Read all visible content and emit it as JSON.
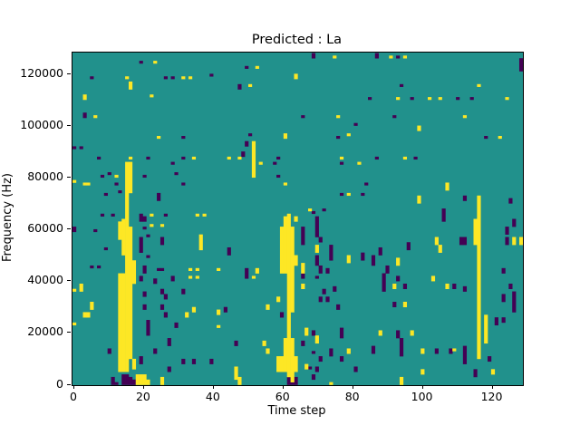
{
  "figure": {
    "background": "#ffffff"
  },
  "chart_data": {
    "type": "heatmap",
    "title": "Predicted : La",
    "xlabel": "Time step",
    "ylabel": "Frequency (Hz)",
    "x_ticks": [
      0,
      20,
      40,
      60,
      80,
      100,
      120
    ],
    "y_ticks": [
      0,
      20000,
      40000,
      60000,
      80000,
      100000,
      120000
    ],
    "xlim": [
      0,
      128
    ],
    "ylim": [
      0,
      128000
    ],
    "grid": {
      "cols": 128,
      "rows": 128
    },
    "legend": "none",
    "colors": {
      "mid_teal": "#21918c",
      "max_yellow": "#fde725",
      "min_dark": "#440154",
      "axes": "#000000",
      "figure_bg": "#ffffff"
    },
    "cells": {
      "encoding": "[col, rowStart, rowEnd], row 0 = bottom (0 Hz), 1 row = 1000 Hz",
      "max_runs": [
        [
          23,
          124,
          124
        ],
        [
          15,
          118,
          118
        ],
        [
          31,
          118,
          118
        ],
        [
          33,
          118,
          118
        ],
        [
          16,
          114,
          116
        ],
        [
          3,
          110,
          111
        ],
        [
          22,
          111,
          111
        ],
        [
          6,
          103,
          103
        ],
        [
          24,
          95,
          95
        ],
        [
          16,
          87,
          87
        ],
        [
          34,
          87,
          87
        ],
        [
          74,
          126,
          126
        ],
        [
          52,
          122,
          122
        ],
        [
          63,
          118,
          119
        ],
        [
          50,
          115,
          115
        ],
        [
          75,
          103,
          103
        ],
        [
          78,
          96,
          96
        ],
        [
          60,
          95,
          96
        ],
        [
          51,
          80,
          93
        ],
        [
          44,
          87,
          87
        ],
        [
          47,
          87,
          87
        ],
        [
          76,
          87,
          87
        ],
        [
          53,
          85,
          85
        ],
        [
          81,
          85,
          85
        ],
        [
          90,
          126,
          126
        ],
        [
          94,
          126,
          126
        ],
        [
          115,
          115,
          115
        ],
        [
          92,
          110,
          110
        ],
        [
          101,
          110,
          110
        ],
        [
          104,
          110,
          110
        ],
        [
          123,
          110,
          110
        ],
        [
          111,
          103,
          103
        ],
        [
          98,
          98,
          99
        ],
        [
          121,
          95,
          95
        ],
        [
          94,
          87,
          87
        ],
        [
          0,
          78,
          78
        ],
        [
          0,
          36,
          36
        ],
        [
          0,
          23,
          23
        ],
        [
          12,
          80,
          80
        ],
        [
          3,
          77,
          77
        ],
        [
          4,
          77,
          77
        ],
        [
          22,
          65,
          65
        ],
        [
          35,
          65,
          65
        ],
        [
          37,
          65,
          65
        ],
        [
          22,
          61,
          61
        ],
        [
          25,
          61,
          61
        ],
        [
          36,
          52,
          57
        ],
        [
          33,
          44,
          44
        ],
        [
          35,
          44,
          44
        ],
        [
          41,
          44,
          44
        ],
        [
          13,
          5,
          42
        ],
        [
          13,
          56,
          62
        ],
        [
          14,
          5,
          42
        ],
        [
          14,
          50,
          63
        ],
        [
          15,
          5,
          85
        ],
        [
          16,
          10,
          60
        ],
        [
          16,
          74,
          85
        ],
        [
          17,
          39,
          47
        ],
        [
          17,
          6,
          9
        ],
        [
          18,
          0,
          3
        ],
        [
          19,
          0,
          3
        ],
        [
          20,
          0,
          3
        ],
        [
          21,
          0,
          1
        ],
        [
          25,
          0,
          2
        ],
        [
          2,
          36,
          38
        ],
        [
          5,
          29,
          31
        ],
        [
          3,
          26,
          27
        ],
        [
          4,
          26,
          27
        ],
        [
          32,
          26,
          27
        ],
        [
          34,
          28,
          29
        ],
        [
          41,
          27,
          28
        ],
        [
          41,
          22,
          22
        ],
        [
          33,
          41,
          41
        ],
        [
          35,
          41,
          41
        ],
        [
          60,
          77,
          77
        ],
        [
          78,
          73,
          73
        ],
        [
          67,
          67,
          67
        ],
        [
          52,
          43,
          44
        ],
        [
          63,
          46,
          49
        ],
        [
          65,
          43,
          46
        ],
        [
          78,
          47,
          49
        ],
        [
          69,
          51,
          53
        ],
        [
          58,
          5,
          10
        ],
        [
          59,
          5,
          10
        ],
        [
          59,
          43,
          60
        ],
        [
          60,
          5,
          17
        ],
        [
          60,
          43,
          64
        ],
        [
          61,
          3,
          65
        ],
        [
          62,
          1,
          4
        ],
        [
          62,
          5,
          17
        ],
        [
          62,
          28,
          60
        ],
        [
          63,
          5,
          10
        ],
        [
          63,
          63,
          64
        ],
        [
          106,
          75,
          77
        ],
        [
          98,
          70,
          72
        ],
        [
          115,
          10,
          72
        ],
        [
          114,
          54,
          63
        ],
        [
          125,
          54,
          56
        ],
        [
          127,
          54,
          56
        ],
        [
          103,
          54,
          56
        ],
        [
          104,
          51,
          53
        ],
        [
          92,
          46,
          48
        ],
        [
          51,
          41,
          41
        ],
        [
          65,
          37,
          38
        ],
        [
          58,
          32,
          33
        ],
        [
          55,
          29,
          30
        ],
        [
          66,
          19,
          21
        ],
        [
          69,
          16,
          18
        ],
        [
          54,
          15,
          16
        ],
        [
          55,
          12,
          13
        ],
        [
          78,
          12,
          13
        ],
        [
          66,
          6,
          7
        ],
        [
          46,
          2,
          6
        ],
        [
          47,
          0,
          2
        ],
        [
          73,
          0,
          0
        ],
        [
          91,
          37,
          38
        ],
        [
          102,
          40,
          41
        ],
        [
          106,
          37,
          38
        ],
        [
          94,
          30,
          31
        ],
        [
          117,
          16,
          26
        ],
        [
          87,
          19,
          20
        ],
        [
          96,
          19,
          20
        ],
        [
          99,
          12,
          13
        ],
        [
          108,
          13,
          13
        ],
        [
          119,
          4,
          5
        ],
        [
          99,
          4,
          5
        ],
        [
          93,
          0,
          2
        ]
      ],
      "min_runs": [
        [
          19,
          124,
          124
        ],
        [
          5,
          118,
          118
        ],
        [
          26,
          118,
          118
        ],
        [
          28,
          118,
          118
        ],
        [
          39,
          119,
          119
        ],
        [
          3,
          103,
          104
        ],
        [
          2,
          91,
          91
        ],
        [
          7,
          87,
          87
        ],
        [
          21,
          87,
          87
        ],
        [
          31,
          87,
          87
        ],
        [
          31,
          95,
          95
        ],
        [
          68,
          126,
          127
        ],
        [
          49,
          122,
          122
        ],
        [
          47,
          114,
          115
        ],
        [
          84,
          110,
          110
        ],
        [
          65,
          103,
          103
        ],
        [
          80,
          100,
          100
        ],
        [
          75,
          95,
          95
        ],
        [
          50,
          96,
          96
        ],
        [
          49,
          92,
          93
        ],
        [
          48,
          88,
          89
        ],
        [
          58,
          87,
          87
        ],
        [
          86,
          126,
          127
        ],
        [
          92,
          126,
          126
        ],
        [
          127,
          121,
          125
        ],
        [
          93,
          115,
          115
        ],
        [
          96,
          110,
          110
        ],
        [
          109,
          110,
          110
        ],
        [
          113,
          110,
          110
        ],
        [
          91,
          103,
          103
        ],
        [
          117,
          95,
          95
        ],
        [
          86,
          87,
          87
        ],
        [
          97,
          87,
          87
        ],
        [
          0,
          59,
          60
        ],
        [
          0,
          91,
          91
        ],
        [
          28,
          85,
          85
        ],
        [
          29,
          81,
          81
        ],
        [
          8,
          80,
          80
        ],
        [
          10,
          81,
          81
        ],
        [
          20,
          80,
          80
        ],
        [
          12,
          77,
          77
        ],
        [
          31,
          77,
          77
        ],
        [
          9,
          73,
          73
        ],
        [
          13,
          74,
          74
        ],
        [
          24,
          71,
          73
        ],
        [
          8,
          65,
          65
        ],
        [
          11,
          65,
          65
        ],
        [
          19,
          63,
          65
        ],
        [
          20,
          63,
          64
        ],
        [
          26,
          65,
          65
        ],
        [
          6,
          59,
          59
        ],
        [
          20,
          60,
          60
        ],
        [
          21,
          57,
          57
        ],
        [
          25,
          54,
          56
        ],
        [
          9,
          52,
          52
        ],
        [
          19,
          51,
          56
        ],
        [
          21,
          49,
          49
        ],
        [
          5,
          45,
          45
        ],
        [
          7,
          45,
          45
        ],
        [
          24,
          44,
          44
        ],
        [
          25,
          44,
          44
        ],
        [
          20,
          43,
          45
        ],
        [
          19,
          40,
          41
        ],
        [
          23,
          39,
          40
        ],
        [
          26,
          33,
          34
        ],
        [
          28,
          40,
          41
        ],
        [
          20,
          34,
          35
        ],
        [
          21,
          19,
          24
        ],
        [
          20,
          29,
          30
        ],
        [
          25,
          35,
          36
        ],
        [
          25,
          29,
          30
        ],
        [
          26,
          26,
          27
        ],
        [
          29,
          22,
          23
        ],
        [
          31,
          35,
          36
        ],
        [
          27,
          15,
          17
        ],
        [
          23,
          12,
          13
        ],
        [
          19,
          8,
          10
        ],
        [
          27,
          5,
          6
        ],
        [
          31,
          8,
          9
        ],
        [
          34,
          8,
          9
        ],
        [
          39,
          8,
          9
        ],
        [
          10,
          12,
          13
        ],
        [
          11,
          0,
          2
        ],
        [
          12,
          0,
          0
        ],
        [
          14,
          0,
          3
        ],
        [
          15,
          0,
          3
        ],
        [
          16,
          0,
          2
        ],
        [
          17,
          0,
          1
        ],
        [
          57,
          85,
          85
        ],
        [
          76,
          85,
          85
        ],
        [
          58,
          80,
          80
        ],
        [
          76,
          73,
          73
        ],
        [
          83,
          77,
          77
        ],
        [
          82,
          73,
          73
        ],
        [
          68,
          66,
          66
        ],
        [
          71,
          67,
          67
        ],
        [
          69,
          57,
          64
        ],
        [
          65,
          54,
          60
        ],
        [
          70,
          55,
          56
        ],
        [
          73,
          48,
          53
        ],
        [
          44,
          50,
          52
        ],
        [
          49,
          43,
          44
        ],
        [
          70,
          43,
          45
        ],
        [
          72,
          43,
          44
        ],
        [
          85,
          46,
          49
        ],
        [
          82,
          48,
          50
        ],
        [
          69,
          46,
          49
        ],
        [
          49,
          41,
          42
        ],
        [
          65,
          41,
          42
        ],
        [
          69,
          41,
          41
        ],
        [
          71,
          35,
          36
        ],
        [
          74,
          36,
          37
        ],
        [
          70,
          32,
          33
        ],
        [
          72,
          32,
          33
        ],
        [
          59,
          26,
          27
        ],
        [
          43,
          28,
          29
        ],
        [
          75,
          29,
          30
        ],
        [
          68,
          19,
          20
        ],
        [
          76,
          18,
          21
        ],
        [
          46,
          15,
          16
        ],
        [
          65,
          15,
          16
        ],
        [
          73,
          11,
          13
        ],
        [
          68,
          12,
          12
        ],
        [
          70,
          9,
          10
        ],
        [
          67,
          6,
          6
        ],
        [
          69,
          5,
          6
        ],
        [
          76,
          9,
          10
        ],
        [
          80,
          5,
          6
        ],
        [
          68,
          2,
          3
        ],
        [
          61,
          0,
          2
        ],
        [
          62,
          0,
          0
        ],
        [
          63,
          0,
          2
        ],
        [
          111,
          71,
          72
        ],
        [
          124,
          70,
          71
        ],
        [
          105,
          63,
          67
        ],
        [
          125,
          61,
          63
        ],
        [
          123,
          58,
          60
        ],
        [
          110,
          54,
          56
        ],
        [
          111,
          54,
          56
        ],
        [
          123,
          54,
          56
        ],
        [
          95,
          52,
          54
        ],
        [
          87,
          50,
          52
        ],
        [
          89,
          43,
          45
        ],
        [
          122,
          43,
          44
        ],
        [
          88,
          36,
          42
        ],
        [
          92,
          40,
          41
        ],
        [
          94,
          37,
          38
        ],
        [
          108,
          37,
          38
        ],
        [
          111,
          36,
          37
        ],
        [
          122,
          32,
          34
        ],
        [
          124,
          37,
          38
        ],
        [
          125,
          28,
          35
        ],
        [
          91,
          30,
          31
        ],
        [
          120,
          23,
          25
        ],
        [
          122,
          24,
          25
        ],
        [
          93,
          11,
          17
        ],
        [
          92,
          18,
          20
        ],
        [
          85,
          12,
          14
        ],
        [
          103,
          12,
          13
        ],
        [
          107,
          12,
          13
        ],
        [
          111,
          8,
          14
        ],
        [
          118,
          9,
          10
        ],
        [
          114,
          3,
          5
        ]
      ]
    }
  }
}
